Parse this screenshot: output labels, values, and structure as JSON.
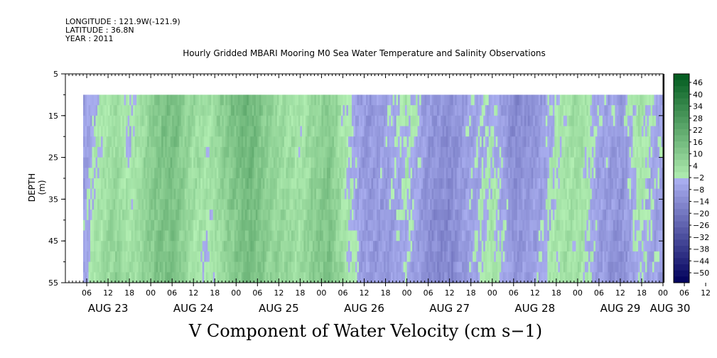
{
  "meta": {
    "longitude": "LONGITUDE : 121.9W(-121.9)",
    "latitude": "LATITUDE : 36.8N",
    "year": "YEAR : 2011"
  },
  "chart_data": {
    "type": "heatmap",
    "title": "Hourly Gridded MBARI Mooring M0 Sea Water Temperature and Salinity Observations",
    "variable_title": "V Component of Water Velocity (cm s−1)",
    "ylabel": "DEPTH (m)",
    "y_reversed": true,
    "ylim": [
      5,
      55
    ],
    "y_ticks": [
      "5",
      "15",
      "25",
      "35",
      "45",
      "55"
    ],
    "data_depth_range": [
      10,
      55
    ],
    "xlim_hours": [
      0,
      168
    ],
    "x_hour_ticks": [
      "06",
      "12",
      "18",
      "00",
      "06",
      "12",
      "18",
      "00",
      "06",
      "12",
      "18",
      "00",
      "06",
      "12",
      "18",
      "00",
      "06",
      "12",
      "18",
      "00",
      "06",
      "12",
      "18",
      "00",
      "06",
      "12",
      "18",
      "00",
      "06",
      "12",
      "18",
      "00"
    ],
    "x_day_labels": [
      "AUG 23",
      "AUG 24",
      "AUG 25",
      "AUG 26",
      "AUG 27",
      "AUG 28",
      "AUG 29",
      "AUG 30"
    ],
    "colorbar": {
      "levels": [
        "46",
        "40",
        "34",
        "28",
        "22",
        "16",
        "10",
        "4",
        "−2",
        "−8",
        "−14",
        "−20",
        "−26",
        "−32",
        "−38",
        "−44",
        "−50"
      ],
      "min": -50,
      "max": 52,
      "step": 3
    },
    "column_profile": [
      {
        "hour": 5,
        "v": -4
      },
      {
        "hour": 9,
        "v": 3
      },
      {
        "hour": 14,
        "v": 8
      },
      {
        "hour": 18,
        "v": 2
      },
      {
        "hour": 22,
        "v": 9
      },
      {
        "hour": 26,
        "v": 15
      },
      {
        "hour": 30,
        "v": 17
      },
      {
        "hour": 35,
        "v": 7
      },
      {
        "hour": 40,
        "v": 3
      },
      {
        "hour": 44,
        "v": 10
      },
      {
        "hour": 48,
        "v": 16
      },
      {
        "hour": 52,
        "v": 19
      },
      {
        "hour": 56,
        "v": 12
      },
      {
        "hour": 60,
        "v": 8
      },
      {
        "hour": 66,
        "v": 5
      },
      {
        "hour": 70,
        "v": 11
      },
      {
        "hour": 74,
        "v": 14
      },
      {
        "hour": 79,
        "v": 2
      },
      {
        "hour": 84,
        "v": -6
      },
      {
        "hour": 90,
        "v": -5
      },
      {
        "hour": 96,
        "v": 1
      },
      {
        "hour": 102,
        "v": -8
      },
      {
        "hour": 108,
        "v": -10
      },
      {
        "hour": 114,
        "v": -3
      },
      {
        "hour": 120,
        "v": 2
      },
      {
        "hour": 126,
        "v": -9
      },
      {
        "hour": 132,
        "v": -6
      },
      {
        "hour": 138,
        "v": 3
      },
      {
        "hour": 144,
        "v": 6
      },
      {
        "hour": 150,
        "v": -4
      },
      {
        "hour": 156,
        "v": -7
      },
      {
        "hour": 161,
        "v": 3
      },
      {
        "hour": 166,
        "v": -3
      }
    ]
  }
}
